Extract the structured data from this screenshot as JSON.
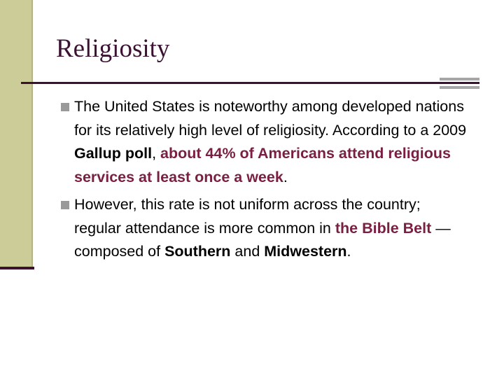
{
  "title": "Religiosity",
  "bullets": [
    {
      "runs": [
        {
          "text": "The United States is noteworthy among developed nations for its relatively high level of religiosity. According to a 2009 ",
          "style": "plain"
        },
        {
          "text": "Gallup poll",
          "style": "bold"
        },
        {
          "text": ", ",
          "style": "plain"
        },
        {
          "text": "about 44% of Americans attend religious services at least once a week",
          "style": "highlight"
        },
        {
          "text": ".",
          "style": "plain"
        }
      ]
    },
    {
      "runs": [
        {
          "text": "However, this rate is not uniform across the country; regular attendance is more common in ",
          "style": "plain"
        },
        {
          "text": "the Bible Belt",
          "style": "highlight"
        },
        {
          "text": " — composed of ",
          "style": "plain"
        },
        {
          "text": "Southern",
          "style": "bold"
        },
        {
          "text": " and ",
          "style": "plain"
        },
        {
          "text": "Midwestern",
          "style": "bold"
        },
        {
          "text": ".",
          "style": "plain"
        }
      ]
    }
  ]
}
